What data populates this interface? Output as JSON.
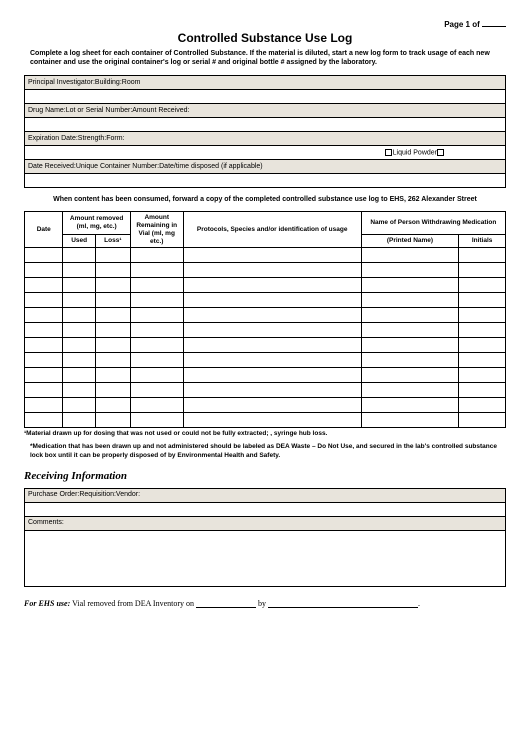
{
  "page_num_label": "Page 1 of",
  "title": "Controlled Substance Use Log",
  "intro": "Complete a log sheet for each container of Controlled Substance. If the material is diluted, start a new log form to track usage of each new container and use the original container's log or serial # and original bottle # assigned by the laboratory.",
  "info_headers": {
    "row1": "Principal Investigator:Building:Room",
    "row2": "Drug Name:Lot or Serial Number:Amount Received:",
    "row3": "Expiration Date:Strength:Form:",
    "row4": "Date Received:Unique Container Number:Date/time disposed (if applicable)"
  },
  "checkbox_liquid": "Liquid",
  "checkbox_powder": "Powder",
  "forward_note": "When content has been consumed, forward a copy of the completed controlled substance use log to EHS, 262 Alexander Street",
  "log_headers": {
    "date": "Date",
    "amount_removed": "Amount removed (ml, mg, etc.)",
    "used": "Used",
    "loss": "Loss¹",
    "remaining": "Amount Remaining in Vial (ml, mg etc.)",
    "protocols": "Protocols, Species and/or identification of usage",
    "person": "Name of Person Withdrawing Medication",
    "printed": "(Printed Name)",
    "initials": "Initials"
  },
  "log_row_count": 12,
  "footnote": "¹Material drawn up for dosing that was not used or could not be fully extracted; , syringe hub loss.",
  "med_note": "*Medication that has been drawn up and not administered should be labeled as DEA Waste – Do Not Use, and secured in the lab's controlled substance lock box until it can be properly disposed of by Environmental Health and Safety.",
  "recv_title": "Receiving Information",
  "recv_headers": {
    "row1": "Purchase Order:Requisition:Vendor:",
    "comments": "Comments:"
  },
  "ehs": {
    "label": "For EHS use:",
    "text1": " Vial removed from DEA Inventory on ",
    "text2": " by ",
    "text3": "."
  }
}
